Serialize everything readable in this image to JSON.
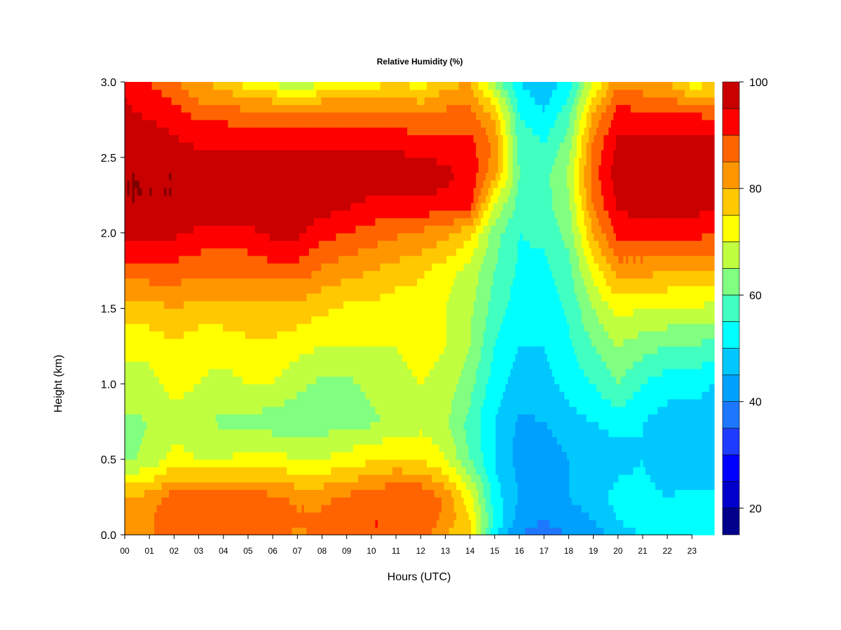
{
  "chart_data": {
    "type": "heatmap",
    "title": "Relative Humidity (%)",
    "xlabel": "Hours (UTC)",
    "ylabel": "Height (km)",
    "xlim": [
      0,
      23.9
    ],
    "ylim": [
      0.0,
      3.0
    ],
    "x_ticks": [
      "00",
      "01",
      "02",
      "03",
      "04",
      "05",
      "06",
      "07",
      "08",
      "09",
      "10",
      "11",
      "12",
      "13",
      "14",
      "15",
      "16",
      "17",
      "18",
      "19",
      "20",
      "21",
      "22",
      "23"
    ],
    "y_ticks": [
      "0.0",
      "0.5",
      "1.0",
      "1.5",
      "2.0",
      "2.5",
      "3.0"
    ],
    "y_tick_values": [
      0.0,
      0.5,
      1.0,
      1.5,
      2.0,
      2.5,
      3.0
    ],
    "colorbar": {
      "range": [
        15,
        100
      ],
      "ticks": [
        "20",
        "40",
        "60",
        "80",
        "100"
      ],
      "tick_values": [
        20,
        40,
        60,
        80,
        100
      ],
      "levels": [
        15,
        20,
        25,
        30,
        35,
        40,
        45,
        50,
        55,
        60,
        65,
        70,
        75,
        80,
        85,
        90,
        95,
        100
      ],
      "colors": [
        "#00008b",
        "#0000cd",
        "#0000ff",
        "#1e3cff",
        "#1e78ff",
        "#00a0ff",
        "#00c8ff",
        "#00ffff",
        "#40ffc0",
        "#80ff80",
        "#c0ff40",
        "#ffff00",
        "#ffc800",
        "#ff9600",
        "#ff6400",
        "#ff0000",
        "#c80000",
        "#800000"
      ]
    },
    "grid_hours": [
      0,
      1,
      2,
      3,
      4,
      5,
      6,
      7,
      8,
      9,
      10,
      11,
      12,
      13,
      14,
      15,
      16,
      17,
      18,
      19,
      20,
      21,
      22,
      23,
      23.9
    ],
    "grid_heights": [
      0.0,
      0.1,
      0.25,
      0.5,
      0.75,
      1.0,
      1.25,
      1.5,
      1.75,
      2.0,
      2.2,
      2.4,
      2.6,
      2.8,
      3.0
    ],
    "values": [
      [
        84,
        84,
        90,
        90,
        88,
        88,
        86,
        84,
        86,
        88,
        90,
        90,
        88,
        80,
        75,
        50,
        40,
        38,
        40,
        42,
        48,
        50,
        50,
        52,
        52
      ],
      [
        82,
        84,
        90,
        90,
        90,
        88,
        88,
        86,
        86,
        88,
        90,
        90,
        88,
        84,
        75,
        55,
        42,
        40,
        42,
        45,
        50,
        52,
        52,
        55,
        55
      ],
      [
        80,
        82,
        88,
        88,
        88,
        88,
        86,
        84,
        84,
        86,
        88,
        90,
        90,
        84,
        72,
        52,
        45,
        42,
        45,
        48,
        52,
        52,
        50,
        52,
        52
      ],
      [
        64,
        66,
        72,
        70,
        70,
        72,
        72,
        70,
        70,
        72,
        74,
        76,
        75,
        70,
        60,
        50,
        43,
        42,
        45,
        45,
        48,
        50,
        45,
        45,
        45
      ],
      [
        64,
        65,
        68,
        66,
        64,
        64,
        62,
        62,
        62,
        64,
        64,
        66,
        68,
        66,
        58,
        50,
        44,
        45,
        48,
        50,
        52,
        50,
        48,
        48,
        46
      ],
      [
        68,
        68,
        72,
        70,
        68,
        70,
        70,
        66,
        64,
        64,
        66,
        68,
        70,
        68,
        62,
        52,
        48,
        48,
        52,
        55,
        60,
        55,
        52,
        52,
        50
      ],
      [
        72,
        72,
        74,
        72,
        72,
        74,
        74,
        72,
        70,
        70,
        70,
        70,
        72,
        70,
        65,
        55,
        50,
        50,
        54,
        60,
        65,
        62,
        60,
        60,
        58
      ],
      [
        78,
        78,
        80,
        78,
        78,
        78,
        78,
        78,
        76,
        74,
        74,
        72,
        72,
        70,
        66,
        58,
        52,
        52,
        56,
        65,
        72,
        70,
        70,
        70,
        68
      ],
      [
        88,
        88,
        88,
        86,
        86,
        86,
        88,
        88,
        84,
        82,
        80,
        78,
        76,
        72,
        68,
        60,
        54,
        54,
        58,
        72,
        82,
        82,
        80,
        80,
        80
      ],
      [
        96,
        96,
        96,
        94,
        94,
        94,
        96,
        96,
        92,
        90,
        88,
        86,
        84,
        82,
        76,
        62,
        55,
        56,
        62,
        80,
        92,
        92,
        92,
        92,
        90
      ],
      [
        100,
        100,
        100,
        98,
        98,
        98,
        98,
        98,
        98,
        96,
        94,
        94,
        94,
        94,
        92,
        70,
        58,
        58,
        64,
        86,
        96,
        98,
        98,
        98,
        96
      ],
      [
        100,
        100,
        100,
        98,
        98,
        98,
        98,
        98,
        98,
        98,
        98,
        98,
        98,
        96,
        94,
        82,
        60,
        58,
        66,
        88,
        98,
        98,
        98,
        98,
        98
      ],
      [
        98,
        98,
        96,
        94,
        94,
        94,
        94,
        94,
        94,
        94,
        94,
        94,
        92,
        92,
        92,
        84,
        58,
        55,
        62,
        86,
        96,
        96,
        96,
        96,
        96
      ],
      [
        96,
        94,
        92,
        88,
        88,
        86,
        86,
        86,
        86,
        86,
        86,
        86,
        84,
        86,
        86,
        78,
        55,
        50,
        58,
        80,
        92,
        90,
        90,
        90,
        88
      ],
      [
        94,
        90,
        86,
        80,
        78,
        72,
        70,
        62,
        70,
        72,
        72,
        76,
        72,
        78,
        80,
        64,
        50,
        46,
        52,
        70,
        84,
        82,
        80,
        72,
        74
      ]
    ]
  }
}
